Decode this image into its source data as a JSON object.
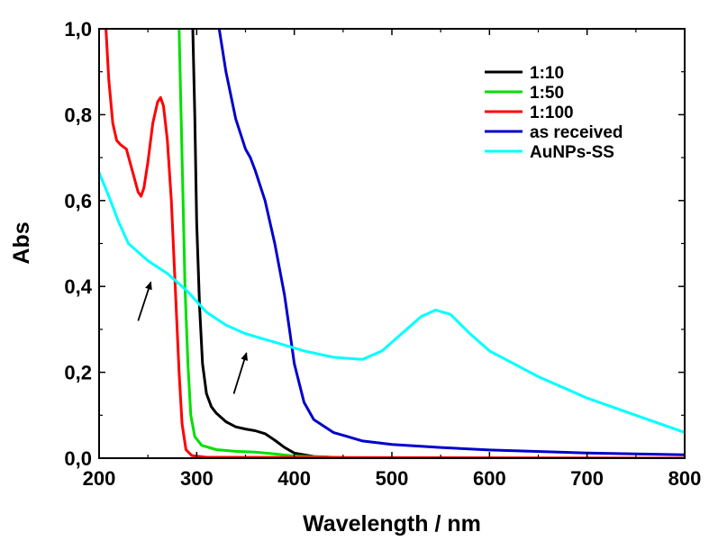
{
  "chart_data": {
    "type": "line",
    "title": "",
    "xlabel": "Wavelength / nm",
    "ylabel": "Abs",
    "xlim": [
      200,
      800
    ],
    "ylim": [
      0,
      1.0
    ],
    "x_ticks": [
      "200",
      "300",
      "400",
      "500",
      "600",
      "700",
      "800"
    ],
    "y_ticks": [
      "0,0",
      "0,2",
      "0,4",
      "0,6",
      "0,8",
      "1,0"
    ],
    "grid": false,
    "legend_position": "top-right",
    "series": [
      {
        "name": "1:10",
        "color": "#000000",
        "points": [
          [
            296,
            1.0
          ],
          [
            298,
            0.8
          ],
          [
            300,
            0.55
          ],
          [
            303,
            0.35
          ],
          [
            306,
            0.22
          ],
          [
            310,
            0.15
          ],
          [
            315,
            0.12
          ],
          [
            320,
            0.105
          ],
          [
            330,
            0.085
          ],
          [
            340,
            0.073
          ],
          [
            350,
            0.068
          ],
          [
            360,
            0.064
          ],
          [
            370,
            0.057
          ],
          [
            380,
            0.042
          ],
          [
            390,
            0.025
          ],
          [
            400,
            0.012
          ],
          [
            420,
            0.004
          ],
          [
            450,
            0.001
          ],
          [
            500,
            0.0
          ],
          [
            800,
            0.0
          ]
        ]
      },
      {
        "name": "1:50",
        "color": "#00e000",
        "points": [
          [
            282,
            1.0
          ],
          [
            284,
            0.8
          ],
          [
            286,
            0.6
          ],
          [
            288,
            0.4
          ],
          [
            291,
            0.22
          ],
          [
            294,
            0.1
          ],
          [
            298,
            0.05
          ],
          [
            305,
            0.03
          ],
          [
            320,
            0.02
          ],
          [
            340,
            0.016
          ],
          [
            360,
            0.014
          ],
          [
            380,
            0.01
          ],
          [
            400,
            0.005
          ],
          [
            450,
            0.001
          ],
          [
            500,
            0.0
          ],
          [
            800,
            0.0
          ]
        ]
      },
      {
        "name": "1:100",
        "color": "#ff0000",
        "points": [
          [
            207,
            1.0
          ],
          [
            210,
            0.88
          ],
          [
            214,
            0.78
          ],
          [
            218,
            0.74
          ],
          [
            222,
            0.73
          ],
          [
            228,
            0.72
          ],
          [
            234,
            0.67
          ],
          [
            240,
            0.62
          ],
          [
            243,
            0.61
          ],
          [
            246,
            0.63
          ],
          [
            250,
            0.69
          ],
          [
            255,
            0.78
          ],
          [
            260,
            0.83
          ],
          [
            263,
            0.84
          ],
          [
            266,
            0.82
          ],
          [
            270,
            0.74
          ],
          [
            274,
            0.6
          ],
          [
            278,
            0.4
          ],
          [
            282,
            0.2
          ],
          [
            285,
            0.08
          ],
          [
            289,
            0.02
          ],
          [
            295,
            0.006
          ],
          [
            310,
            0.002
          ],
          [
            800,
            0.0
          ]
        ]
      },
      {
        "name": "as received",
        "color": "#0000cc",
        "points": [
          [
            323,
            1.0
          ],
          [
            330,
            0.9
          ],
          [
            340,
            0.79
          ],
          [
            350,
            0.72
          ],
          [
            355,
            0.7
          ],
          [
            360,
            0.67
          ],
          [
            370,
            0.6
          ],
          [
            380,
            0.5
          ],
          [
            390,
            0.38
          ],
          [
            395,
            0.3
          ],
          [
            400,
            0.22
          ],
          [
            410,
            0.13
          ],
          [
            420,
            0.09
          ],
          [
            440,
            0.06
          ],
          [
            470,
            0.04
          ],
          [
            500,
            0.032
          ],
          [
            550,
            0.025
          ],
          [
            600,
            0.019
          ],
          [
            700,
            0.012
          ],
          [
            800,
            0.008
          ]
        ]
      },
      {
        "name": "AuNPs-SS",
        "color": "#00ffff",
        "points": [
          [
            200,
            0.665
          ],
          [
            210,
            0.61
          ],
          [
            220,
            0.55
          ],
          [
            230,
            0.5
          ],
          [
            240,
            0.48
          ],
          [
            250,
            0.46
          ],
          [
            270,
            0.43
          ],
          [
            290,
            0.39
          ],
          [
            310,
            0.34
          ],
          [
            330,
            0.31
          ],
          [
            350,
            0.29
          ],
          [
            380,
            0.27
          ],
          [
            410,
            0.25
          ],
          [
            440,
            0.235
          ],
          [
            470,
            0.23
          ],
          [
            490,
            0.25
          ],
          [
            510,
            0.29
          ],
          [
            530,
            0.33
          ],
          [
            545,
            0.345
          ],
          [
            560,
            0.335
          ],
          [
            580,
            0.29
          ],
          [
            600,
            0.25
          ],
          [
            625,
            0.22
          ],
          [
            650,
            0.19
          ],
          [
            700,
            0.14
          ],
          [
            750,
            0.1
          ],
          [
            800,
            0.06
          ]
        ]
      }
    ],
    "annotations": [
      {
        "type": "arrow",
        "from": [
          240,
          0.32
        ],
        "to": [
          253,
          0.41
        ]
      },
      {
        "type": "arrow",
        "from": [
          338,
          0.15
        ],
        "to": [
          351,
          0.245
        ]
      }
    ]
  }
}
